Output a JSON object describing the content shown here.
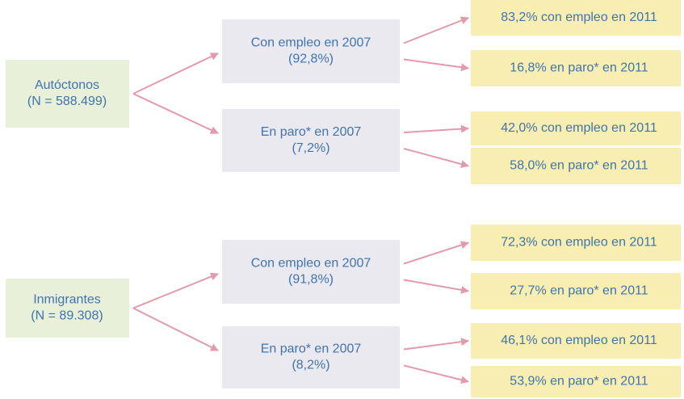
{
  "groups": [
    {
      "origin": {
        "name": "Autóctonos",
        "count": "(N = 588.499)"
      },
      "branches": [
        {
          "status": "Con empleo en 2007",
          "share": "(92,8%)",
          "outcomes": [
            "83,2% con empleo en 2011",
            "16,8% en paro* en 2011"
          ]
        },
        {
          "status": "En paro* en 2007",
          "share": "(7,2%)",
          "outcomes": [
            "42,0% con empleo en 2011",
            "58,0% en paro* en 2011"
          ]
        }
      ]
    },
    {
      "origin": {
        "name": "Inmigrantes",
        "count": "(N = 89.308)"
      },
      "branches": [
        {
          "status": "Con empleo en 2007",
          "share": "(91,8%)",
          "outcomes": [
            "72,3% con empleo en 2011",
            "27,7% en paro* en 2011"
          ]
        },
        {
          "status": "En paro* en 2007",
          "share": "(8,2%)",
          "outcomes": [
            "46,1% con empleo en 2011",
            "53,9% en paro* en 2011"
          ]
        }
      ]
    }
  ]
}
